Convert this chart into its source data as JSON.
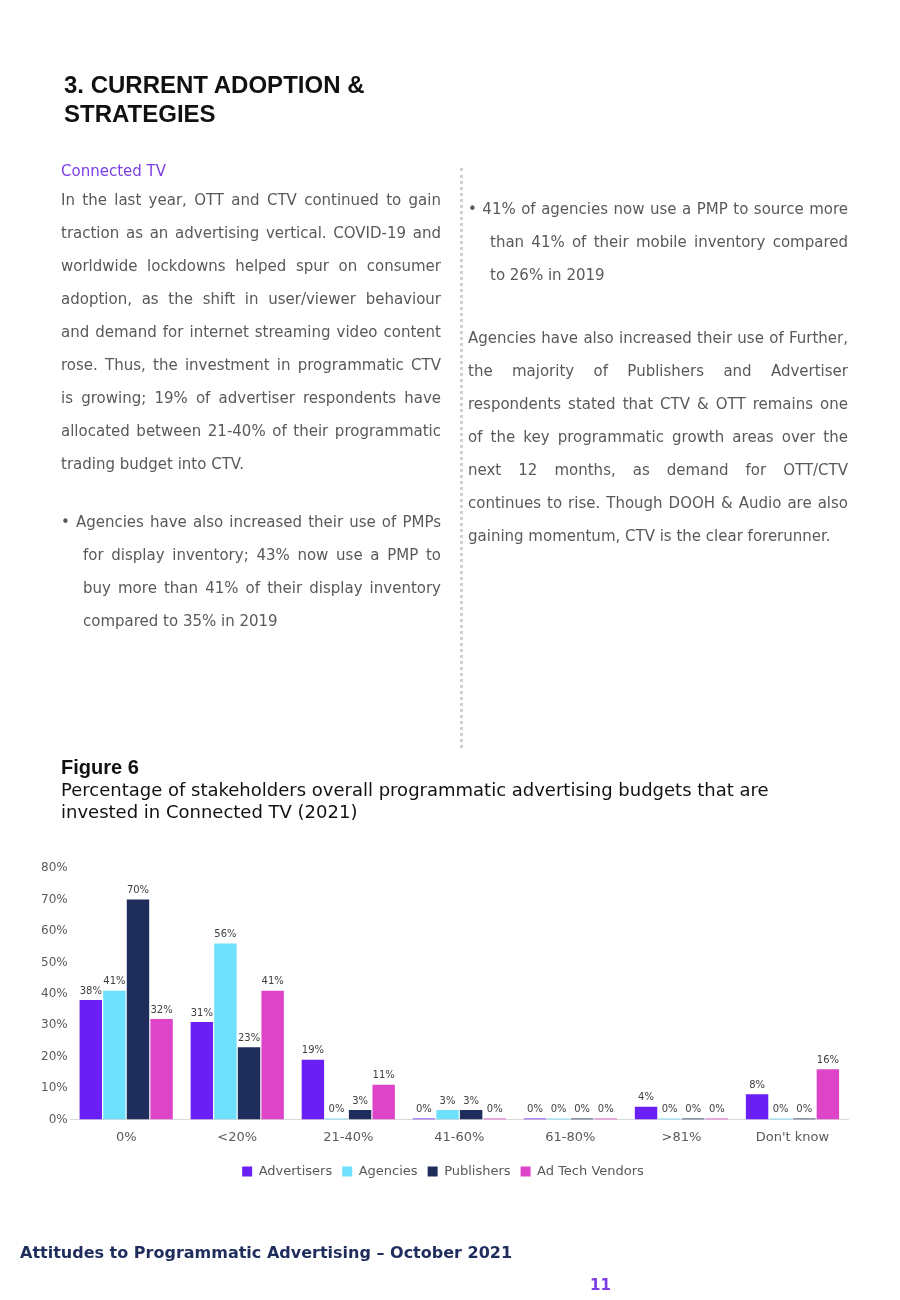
{
  "chart_data": {
    "type": "bar",
    "title": "Figure 6",
    "subtitle": "Percentage of stakeholders overall programmatic advertising budgets that are invested in Connected TV (2021)",
    "categories": [
      "0%",
      "<20%",
      "21-40%",
      "41-60%",
      "61-80%",
      ">81%",
      "Don't know"
    ],
    "series": [
      {
        "name": "Advertisers",
        "color": "#6a1ff5",
        "values": [
          38,
          31,
          19,
          0,
          0,
          4,
          8
        ],
        "value_labels": [
          "38%",
          "31%",
          "19%",
          "0%",
          "0%",
          "4%",
          "8%"
        ]
      },
      {
        "name": "Agencies",
        "color": "#6ee0fb",
        "values": [
          41,
          56,
          0,
          3,
          0,
          0,
          0
        ],
        "value_labels": [
          "41%",
          "56%",
          "0%",
          "3%",
          "0%",
          "0%",
          "0%"
        ]
      },
      {
        "name": "Publishers",
        "color": "#1f2d5c",
        "values": [
          70,
          23,
          3,
          3,
          0,
          0,
          0
        ],
        "value_labels": [
          "70%",
          "23%",
          "3%",
          "3%",
          "0%",
          "0%",
          "0%"
        ]
      },
      {
        "name": "Ad Tech Vendors",
        "color": "#dd44c8",
        "values": [
          32,
          41,
          11,
          0,
          0,
          0,
          16
        ],
        "value_labels": [
          "32%",
          "41%",
          "11%",
          "0%",
          "0%",
          "0%",
          "16%"
        ]
      }
    ],
    "ylim": [
      0,
      80
    ],
    "yticks": [
      {
        "value": 0,
        "label": "0%"
      },
      {
        "value": 10,
        "label": "10%"
      },
      {
        "value": 20,
        "label": "20%"
      },
      {
        "value": 30,
        "label": "30%"
      },
      {
        "value": 40,
        "label": "40%"
      },
      {
        "value": 50,
        "label": "50%"
      },
      {
        "value": 60,
        "label": "60%"
      },
      {
        "value": 70,
        "label": "70%"
      },
      {
        "value": 80,
        "label": "80%"
      }
    ],
    "grid": false,
    "legend": "bottom",
    "annotations": [
      "3. CURRENT ADOPTION & STRATEGIES",
      "Connected TV",
      "In the last year, OTT and CTV continued to gain traction as an advertising vertical. COVID-19 and worldwide lockdowns helped spur on consumer adoption, as the shift in user/viewer behaviour and demand for internet streaming video content rose. Thus, the investment in programmatic CTV is growing; 19% of advertiser respondents have allocated between 21-40% of their programmatic trading budget into CTV.",
      "• Agencies have also increased their use of PMPs for display inventory; 43% now use a PMP to buy more than 41% of their display inventory compared to 35% in 2019",
      "• 41% of agencies now use a PMP to source more than 41% of their mobile inventory compared to 26% in 2019",
      "Agencies have also increased their use of Further, the majority of Publishers and Advertiser respondents stated that CTV & OTT remains one of the key programmatic growth areas over the next 12 months, as demand for OTT/CTV continues to rise. Though DOOH & Audio are also gaining momentum, CTV is the clear forerunner.",
      "Attitudes to Programmatic Advertising – October 2021",
      "11"
    ]
  }
}
